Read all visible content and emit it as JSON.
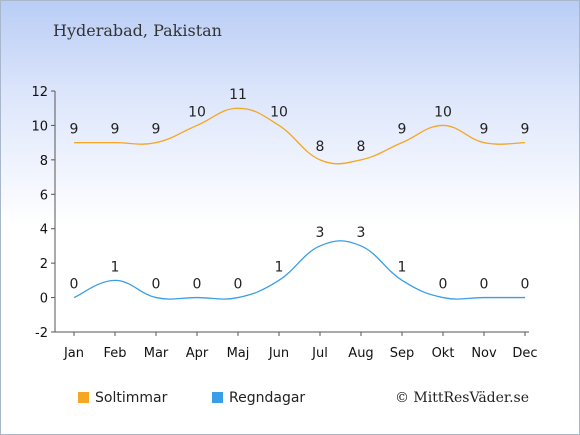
{
  "title": "Hyderabad, Pakistan",
  "credit": "© MittResVäder.se",
  "chart_data": {
    "type": "line",
    "title": "Hyderabad, Pakistan",
    "categories": [
      "Jan",
      "Feb",
      "Mar",
      "Apr",
      "Maj",
      "Jun",
      "Jul",
      "Aug",
      "Sep",
      "Okt",
      "Nov",
      "Dec"
    ],
    "yticks": [
      "12",
      "10",
      "8",
      "6",
      "4",
      "2",
      "0",
      "-2"
    ],
    "ylim": [
      -2,
      12
    ],
    "grid": false,
    "legend_position": "bottom-left",
    "series": [
      {
        "name": "Soltimmar",
        "color": "#f5a623",
        "values": [
          9,
          9,
          9,
          10,
          11,
          10,
          8,
          8,
          9,
          10,
          9,
          9
        ],
        "labels": [
          "9",
          "9",
          "9",
          "10",
          "11",
          "10",
          "8",
          "8",
          "9",
          "10",
          "9",
          "9"
        ]
      },
      {
        "name": "Regndagar",
        "color": "#3a9ee6",
        "values": [
          0,
          1,
          0,
          0,
          0,
          1,
          3,
          3,
          1,
          0,
          0,
          0
        ],
        "labels": [
          "0",
          "1",
          "0",
          "0",
          "0",
          "1",
          "3",
          "3",
          "1",
          "0",
          "0",
          "0"
        ]
      }
    ]
  },
  "legend": {
    "items": [
      {
        "label": "Soltimmar",
        "color": "#f5a623"
      },
      {
        "label": "Regndagar",
        "color": "#3a9ee6"
      }
    ]
  }
}
